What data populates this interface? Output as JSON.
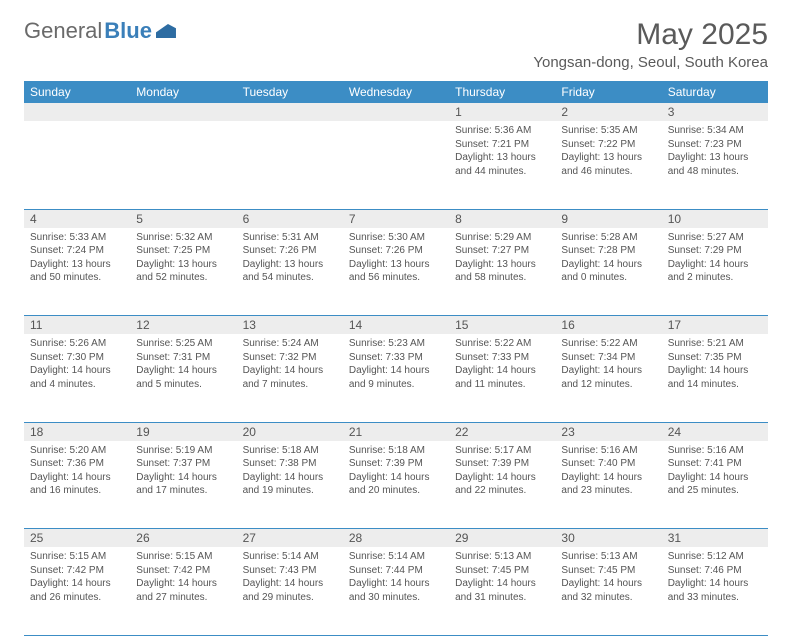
{
  "logo": {
    "part1": "General",
    "part2": "Blue"
  },
  "title": "May 2025",
  "location": "Yongsan-dong, Seoul, South Korea",
  "colors": {
    "header_bg": "#3c8dc5",
    "daynum_bg": "#ededed",
    "text": "#555555",
    "rule": "#3c8dc5"
  },
  "weekdays": [
    "Sunday",
    "Monday",
    "Tuesday",
    "Wednesday",
    "Thursday",
    "Friday",
    "Saturday"
  ],
  "weeks": [
    [
      null,
      null,
      null,
      null,
      {
        "n": "1",
        "sr": "5:36 AM",
        "ss": "7:21 PM",
        "dl": "13 hours and 44 minutes."
      },
      {
        "n": "2",
        "sr": "5:35 AM",
        "ss": "7:22 PM",
        "dl": "13 hours and 46 minutes."
      },
      {
        "n": "3",
        "sr": "5:34 AM",
        "ss": "7:23 PM",
        "dl": "13 hours and 48 minutes."
      }
    ],
    [
      {
        "n": "4",
        "sr": "5:33 AM",
        "ss": "7:24 PM",
        "dl": "13 hours and 50 minutes."
      },
      {
        "n": "5",
        "sr": "5:32 AM",
        "ss": "7:25 PM",
        "dl": "13 hours and 52 minutes."
      },
      {
        "n": "6",
        "sr": "5:31 AM",
        "ss": "7:26 PM",
        "dl": "13 hours and 54 minutes."
      },
      {
        "n": "7",
        "sr": "5:30 AM",
        "ss": "7:26 PM",
        "dl": "13 hours and 56 minutes."
      },
      {
        "n": "8",
        "sr": "5:29 AM",
        "ss": "7:27 PM",
        "dl": "13 hours and 58 minutes."
      },
      {
        "n": "9",
        "sr": "5:28 AM",
        "ss": "7:28 PM",
        "dl": "14 hours and 0 minutes."
      },
      {
        "n": "10",
        "sr": "5:27 AM",
        "ss": "7:29 PM",
        "dl": "14 hours and 2 minutes."
      }
    ],
    [
      {
        "n": "11",
        "sr": "5:26 AM",
        "ss": "7:30 PM",
        "dl": "14 hours and 4 minutes."
      },
      {
        "n": "12",
        "sr": "5:25 AM",
        "ss": "7:31 PM",
        "dl": "14 hours and 5 minutes."
      },
      {
        "n": "13",
        "sr": "5:24 AM",
        "ss": "7:32 PM",
        "dl": "14 hours and 7 minutes."
      },
      {
        "n": "14",
        "sr": "5:23 AM",
        "ss": "7:33 PM",
        "dl": "14 hours and 9 minutes."
      },
      {
        "n": "15",
        "sr": "5:22 AM",
        "ss": "7:33 PM",
        "dl": "14 hours and 11 minutes."
      },
      {
        "n": "16",
        "sr": "5:22 AM",
        "ss": "7:34 PM",
        "dl": "14 hours and 12 minutes."
      },
      {
        "n": "17",
        "sr": "5:21 AM",
        "ss": "7:35 PM",
        "dl": "14 hours and 14 minutes."
      }
    ],
    [
      {
        "n": "18",
        "sr": "5:20 AM",
        "ss": "7:36 PM",
        "dl": "14 hours and 16 minutes."
      },
      {
        "n": "19",
        "sr": "5:19 AM",
        "ss": "7:37 PM",
        "dl": "14 hours and 17 minutes."
      },
      {
        "n": "20",
        "sr": "5:18 AM",
        "ss": "7:38 PM",
        "dl": "14 hours and 19 minutes."
      },
      {
        "n": "21",
        "sr": "5:18 AM",
        "ss": "7:39 PM",
        "dl": "14 hours and 20 minutes."
      },
      {
        "n": "22",
        "sr": "5:17 AM",
        "ss": "7:39 PM",
        "dl": "14 hours and 22 minutes."
      },
      {
        "n": "23",
        "sr": "5:16 AM",
        "ss": "7:40 PM",
        "dl": "14 hours and 23 minutes."
      },
      {
        "n": "24",
        "sr": "5:16 AM",
        "ss": "7:41 PM",
        "dl": "14 hours and 25 minutes."
      }
    ],
    [
      {
        "n": "25",
        "sr": "5:15 AM",
        "ss": "7:42 PM",
        "dl": "14 hours and 26 minutes."
      },
      {
        "n": "26",
        "sr": "5:15 AM",
        "ss": "7:42 PM",
        "dl": "14 hours and 27 minutes."
      },
      {
        "n": "27",
        "sr": "5:14 AM",
        "ss": "7:43 PM",
        "dl": "14 hours and 29 minutes."
      },
      {
        "n": "28",
        "sr": "5:14 AM",
        "ss": "7:44 PM",
        "dl": "14 hours and 30 minutes."
      },
      {
        "n": "29",
        "sr": "5:13 AM",
        "ss": "7:45 PM",
        "dl": "14 hours and 31 minutes."
      },
      {
        "n": "30",
        "sr": "5:13 AM",
        "ss": "7:45 PM",
        "dl": "14 hours and 32 minutes."
      },
      {
        "n": "31",
        "sr": "5:12 AM",
        "ss": "7:46 PM",
        "dl": "14 hours and 33 minutes."
      }
    ]
  ],
  "labels": {
    "sunrise": "Sunrise:",
    "sunset": "Sunset:",
    "daylight": "Daylight:"
  }
}
